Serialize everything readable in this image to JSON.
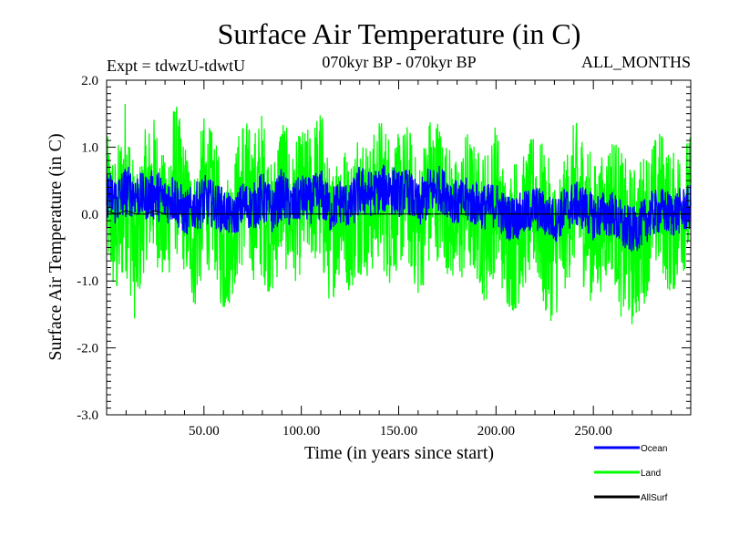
{
  "chart_data": {
    "type": "line",
    "title": "Surface Air Temperature (in C)",
    "subtitle_left": "Expt = tdwzU-tdwtU",
    "subtitle_center": "070kyr BP - 070kyr BP",
    "subtitle_right": "ALL_MONTHS",
    "xlabel": "Time (in years since start)",
    "ylabel": "Surface Air Temperature (in C)",
    "xlim": [
      0,
      300
    ],
    "ylim": [
      -3.0,
      2.0
    ],
    "x_ticks": [
      50,
      100,
      150,
      200,
      250
    ],
    "x_tick_labels": [
      "50.00",
      "100.00",
      "150.00",
      "200.00",
      "250.00"
    ],
    "y_ticks": [
      -3.0,
      -2.0,
      -1.0,
      0.0,
      1.0,
      2.0
    ],
    "y_tick_labels": [
      "-3.0",
      "-2.0",
      "-1.0",
      "0.0",
      "1.0",
      "2.0"
    ],
    "reference_line": 0.0,
    "series": [
      {
        "name": "Land",
        "color": "#00ff00",
        "x_start": 0,
        "x_step": 5,
        "values": [
          0.2,
          -0.3,
          0.5,
          -0.6,
          0.3,
          0.4,
          -0.2,
          0.6,
          0.1,
          -0.4,
          0.3,
          0.2,
          -0.5,
          -0.2,
          0.4,
          0.1,
          0.3,
          -0.3,
          0.5,
          -0.1,
          0.2,
          0.3,
          0.4,
          -0.4,
          0.2,
          -0.2,
          0.3,
          0.0,
          0.4,
          0.1,
          0.2,
          0.3,
          -0.3,
          0.3,
          0.4,
          0.1,
          -0.2,
          0.2,
          0.0,
          -0.2,
          0.3,
          -0.4,
          -0.3,
          -0.1,
          0.2,
          -0.3,
          -0.5,
          -0.2,
          0.3,
          0.1,
          -0.3,
          -0.1,
          0.2,
          -0.4,
          -0.5,
          -0.3,
          0.1,
          0.2,
          -0.2,
          0.1,
          0.2
        ],
        "amplitude": [
          1.0,
          1.2,
          1.4,
          1.1,
          1.0,
          1.1,
          1.0,
          1.2,
          1.0,
          1.1,
          1.2,
          1.0,
          1.1,
          1.0,
          1.2,
          1.1,
          1.3,
          1.0,
          1.2,
          1.0,
          1.1,
          1.0,
          1.3,
          1.0,
          1.1,
          1.0,
          1.2,
          1.0,
          1.1,
          1.2,
          1.0,
          1.1,
          1.0,
          1.2,
          1.1,
          1.0,
          1.0,
          1.1,
          1.0,
          1.2,
          1.1,
          1.0,
          1.2,
          1.0,
          1.1,
          1.3,
          1.1,
          1.0,
          1.1,
          1.2,
          1.1,
          1.0,
          1.1,
          1.3,
          1.2,
          1.2,
          1.0,
          1.1,
          1.1,
          1.0,
          1.0
        ]
      },
      {
        "name": "Ocean",
        "color": "#0000ff",
        "x_start": 0,
        "x_step": 5,
        "values": [
          0.3,
          0.2,
          0.35,
          0.3,
          0.25,
          0.3,
          0.2,
          0.25,
          0.0,
          0.1,
          0.2,
          0.15,
          0.05,
          -0.05,
          0.15,
          0.1,
          0.25,
          0.05,
          0.3,
          0.1,
          0.25,
          0.2,
          0.3,
          0.05,
          0.2,
          0.1,
          0.35,
          0.3,
          0.35,
          0.4,
          0.3,
          0.35,
          0.1,
          0.3,
          0.4,
          0.3,
          0.15,
          0.2,
          0.15,
          0.1,
          0.15,
          -0.05,
          -0.05,
          0.0,
          0.1,
          0.0,
          -0.1,
          0.05,
          0.15,
          0.1,
          -0.05,
          0.0,
          0.0,
          -0.2,
          -0.25,
          -0.15,
          0.0,
          0.05,
          0.0,
          0.05,
          0.1
        ],
        "amplitude": [
          0.35,
          0.4,
          0.4,
          0.35,
          0.35,
          0.4,
          0.35,
          0.4,
          0.35,
          0.35,
          0.4,
          0.35,
          0.35,
          0.3,
          0.35,
          0.35,
          0.4,
          0.35,
          0.4,
          0.35,
          0.35,
          0.35,
          0.4,
          0.35,
          0.35,
          0.35,
          0.4,
          0.35,
          0.35,
          0.4,
          0.35,
          0.35,
          0.35,
          0.4,
          0.35,
          0.35,
          0.35,
          0.35,
          0.35,
          0.35,
          0.35,
          0.35,
          0.35,
          0.35,
          0.35,
          0.35,
          0.35,
          0.35,
          0.35,
          0.35,
          0.35,
          0.35,
          0.35,
          0.4,
          0.35,
          0.35,
          0.35,
          0.35,
          0.35,
          0.35,
          0.35
        ]
      },
      {
        "name": "AllSurf",
        "color": "#000000",
        "x_start": 0,
        "x_step": 5,
        "values": [
          0.05,
          0.0,
          0.05,
          0.0,
          0.0,
          0.05,
          0.0,
          0.0,
          0.0,
          0.0,
          0.0,
          0.0,
          0.0,
          0.0,
          0.0,
          0.0,
          0.0,
          0.0,
          0.0,
          0.0,
          0.0,
          0.0,
          0.0,
          0.0,
          0.0,
          0.0,
          0.0,
          0.0,
          0.0,
          0.0,
          0.0,
          0.0,
          0.0,
          0.0,
          0.0,
          0.0,
          0.0,
          0.0,
          0.0,
          0.0,
          0.0,
          0.0,
          0.0,
          0.0,
          0.0,
          0.0,
          0.0,
          0.0,
          0.0,
          0.0,
          0.0,
          0.0,
          0.0,
          0.0,
          0.0,
          0.0,
          0.0,
          0.0,
          0.0,
          0.0,
          0.0
        ]
      }
    ],
    "legend": [
      {
        "label": "Ocean",
        "color": "#0000ff"
      },
      {
        "label": "Land",
        "color": "#00ff00"
      },
      {
        "label": "AllSurf",
        "color": "#000000"
      }
    ]
  }
}
